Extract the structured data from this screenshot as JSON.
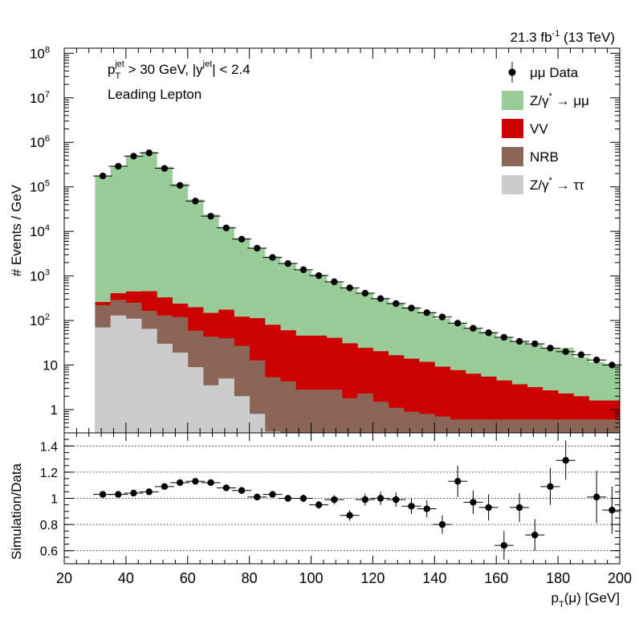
{
  "header": {
    "lumi_main": "21.3 fb",
    "lumi_sup": "-1",
    "lumi_energy": "(13 TeV)",
    "cut_p": "p",
    "cut_p_sub": "T",
    "cut_p_sup": "jet",
    "cut_mid": "> 30 GeV,  |y",
    "cut_y_sup": "jet",
    "cut_end": "| < 2.4",
    "lepton": "Leading Lepton"
  },
  "axes": {
    "top_ylabel": "# Events / GeV",
    "bottom_ylabel": "Simulation/Data",
    "xlabel_p": "p",
    "xlabel_sub": "T",
    "xlabel_rest": "(μ) [GeV]",
    "top_yticks": [
      {
        "v": 1,
        "label": "1"
      },
      {
        "v": 10,
        "label": "10"
      },
      {
        "v": 100,
        "label": "10",
        "sup": "2"
      },
      {
        "v": 1000,
        "label": "10",
        "sup": "3"
      },
      {
        "v": 10000,
        "label": "10",
        "sup": "4"
      },
      {
        "v": 100000,
        "label": "10",
        "sup": "5"
      },
      {
        "v": 1000000,
        "label": "10",
        "sup": "6"
      },
      {
        "v": 10000000,
        "label": "10",
        "sup": "7"
      },
      {
        "v": 100000000,
        "label": "10",
        "sup": "8"
      }
    ],
    "bottom_yticks": [
      {
        "v": 0.6,
        "label": "0.6"
      },
      {
        "v": 0.8,
        "label": "0.8"
      },
      {
        "v": 1.0,
        "label": "1"
      },
      {
        "v": 1.2,
        "label": "1.2"
      },
      {
        "v": 1.4,
        "label": "1.4"
      }
    ],
    "xticks": [
      {
        "v": 20,
        "label": "20"
      },
      {
        "v": 40,
        "label": "40"
      },
      {
        "v": 60,
        "label": "60"
      },
      {
        "v": 80,
        "label": "80"
      },
      {
        "v": 100,
        "label": "100"
      },
      {
        "v": 120,
        "label": "120"
      },
      {
        "v": 140,
        "label": "140"
      },
      {
        "v": 160,
        "label": "160"
      },
      {
        "v": 180,
        "label": "180"
      },
      {
        "v": 200,
        "label": "200"
      }
    ]
  },
  "legend": [
    {
      "kind": "marker",
      "label": "μμ Data"
    },
    {
      "kind": "box",
      "color": "#99cc99",
      "label": "Z/γ",
      "sup": "*",
      "rest": " → μμ"
    },
    {
      "kind": "box",
      "color": "#cc0000",
      "label": "VV"
    },
    {
      "kind": "box",
      "color": "#8b6657",
      "label": "NRB"
    },
    {
      "kind": "box",
      "color": "#cccccc",
      "label": "Z/γ",
      "sup": "*",
      "rest": " → ττ"
    }
  ],
  "chart_data": [
    {
      "type": "bar",
      "stacked": true,
      "log_y": true,
      "xlim": [
        20,
        200
      ],
      "ylim": [
        0.3,
        130000000
      ],
      "bin_edges": [
        30,
        35,
        40,
        45,
        50,
        55,
        60,
        65,
        70,
        75,
        80,
        85,
        90,
        95,
        100,
        105,
        110,
        115,
        120,
        125,
        130,
        135,
        140,
        145,
        150,
        155,
        160,
        165,
        170,
        175,
        180,
        185,
        190,
        195,
        200
      ],
      "series": [
        {
          "name": "Z/γ* → ττ",
          "color": "#cccccc",
          "values": [
            70,
            130,
            110,
            65,
            30,
            19,
            9,
            3.5,
            5,
            2,
            0.8,
            0.32,
            0.3,
            0.3,
            0.3,
            0.3,
            0.3,
            0.3,
            0.3,
            0.3,
            0.3,
            0.3,
            0.3,
            0.3,
            0.3,
            0.3,
            0.3,
            0.3,
            0.3,
            0.3,
            0.3,
            0.3,
            0.3,
            0.3
          ]
        },
        {
          "name": "NRB",
          "color": "#8b6657",
          "values": [
            150,
            160,
            140,
            100,
            100,
            100,
            50,
            40,
            35,
            25,
            12,
            5,
            4,
            2.5,
            2.5,
            2.5,
            1.5,
            2,
            1.2,
            0.8,
            0.6,
            0.5,
            0.4,
            0.3,
            0.3,
            0.3,
            0.3,
            0.3,
            0.3,
            0.3,
            0.3,
            0.3,
            0.3,
            0.3
          ]
        },
        {
          "name": "VV",
          "color": "#cc0000",
          "values": [
            40,
            120,
            200,
            290,
            200,
            120,
            140,
            105,
            135,
            95,
            100,
            75,
            56,
            43,
            43,
            38,
            29,
            22,
            19,
            15.5,
            13,
            11,
            8.5,
            7.1,
            5.8,
            4.9,
            3.9,
            3.1,
            2.6,
            2.1,
            1.7,
            1.4,
            1.0,
            1.0
          ]
        },
        {
          "name": "Z/γ* → μμ",
          "color": "#99cc99",
          "values": [
            181000,
            297000,
            507000,
            608000,
            283000,
            118000,
            52000,
            24000,
            12500,
            7000,
            4200,
            2670,
            1900,
            1350,
            1020,
            690,
            506,
            391,
            300,
            234,
            186,
            144,
            101,
            77,
            60,
            50,
            37,
            31,
            26,
            21,
            22,
            13,
            10,
            9
          ]
        }
      ]
    },
    {
      "type": "scatter",
      "name": "μμ Data",
      "log_y": true,
      "x": [
        32.5,
        37.5,
        42.5,
        47.5,
        52.5,
        57.5,
        62.5,
        67.5,
        72.5,
        77.5,
        82.5,
        87.5,
        92.5,
        97.5,
        102.5,
        107.5,
        112.5,
        117.5,
        122.5,
        127.5,
        132.5,
        137.5,
        142.5,
        147.5,
        152.5,
        157.5,
        162.5,
        167.5,
        172.5,
        177.5,
        182.5,
        187.5,
        192.5,
        197.5
      ],
      "y": [
        176000,
        290000,
        490000,
        580000,
        260000,
        108000,
        48000,
        22000,
        12000,
        6700,
        4200,
        2600,
        1900,
        1380,
        1020,
        740,
        540,
        410,
        310,
        240,
        190,
        150,
        120,
        87,
        67,
        53,
        42,
        34,
        30,
        24,
        20,
        17,
        13,
        10
      ]
    },
    {
      "type": "scatter",
      "name": "Simulation/Data",
      "xlim": [
        20,
        200
      ],
      "ylim": [
        0.5,
        1.5
      ],
      "x": [
        32.5,
        37.5,
        42.5,
        47.5,
        52.5,
        57.5,
        62.5,
        67.5,
        72.5,
        77.5,
        82.5,
        87.5,
        92.5,
        97.5,
        102.5,
        107.5,
        112.5,
        117.5,
        122.5,
        127.5,
        132.5,
        137.5,
        142.5,
        147.5,
        152.5,
        157.5,
        162.5,
        167.5,
        172.5,
        177.5,
        182.5,
        192.5,
        197.5
      ],
      "y": [
        1.03,
        1.03,
        1.04,
        1.05,
        1.09,
        1.12,
        1.13,
        1.12,
        1.08,
        1.06,
        1.01,
        1.03,
        1.0,
        1.0,
        0.95,
        0.99,
        0.87,
        0.99,
        1.0,
        0.99,
        0.94,
        0.92,
        0.8,
        1.13,
        0.97,
        0.93,
        0.64,
        0.93,
        0.72,
        1.09,
        1.29,
        1.01,
        0.91
      ],
      "err": [
        0.005,
        0.005,
        0.005,
        0.005,
        0.006,
        0.007,
        0.008,
        0.009,
        0.01,
        0.012,
        0.015,
        0.02,
        0.025,
        0.028,
        0.03,
        0.035,
        0.04,
        0.045,
        0.05,
        0.055,
        0.06,
        0.065,
        0.07,
        0.12,
        0.09,
        0.1,
        0.11,
        0.11,
        0.12,
        0.14,
        0.15,
        0.2,
        0.18
      ],
      "reference_lines": [
        0.6,
        0.8,
        1.0,
        1.2,
        1.4
      ]
    }
  ]
}
